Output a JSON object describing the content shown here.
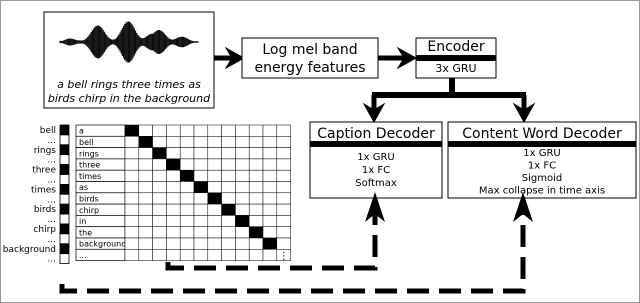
{
  "waveform_caption": [
    "a bell rings three times as",
    "birds chirp in the background"
  ],
  "features": {
    "lines": [
      "Log mel band",
      "energy features"
    ]
  },
  "encoder": {
    "title": "Encoder",
    "layers": [
      "3x GRU"
    ]
  },
  "caption_decoder": {
    "title": "Caption Decoder",
    "layers": [
      "1x GRU",
      "1x FC",
      "Softmax"
    ]
  },
  "content_word_decoder": {
    "title": "Content Word Decoder",
    "layers": [
      "1x GRU",
      "1x FC",
      "Sigmoid",
      "Max collapse in time axis"
    ]
  },
  "left_labels": [
    "bell",
    "...",
    "rings",
    "...",
    "three",
    "...",
    "times",
    "...",
    "birds",
    "...",
    "chirp",
    "...",
    "background",
    "..."
  ],
  "word_list": [
    "a",
    "bell",
    "rings",
    "three",
    "times",
    "as",
    "birds",
    "chirp",
    "in",
    "the",
    "background",
    "..."
  ],
  "matrix_ellipsis": "⋮"
}
